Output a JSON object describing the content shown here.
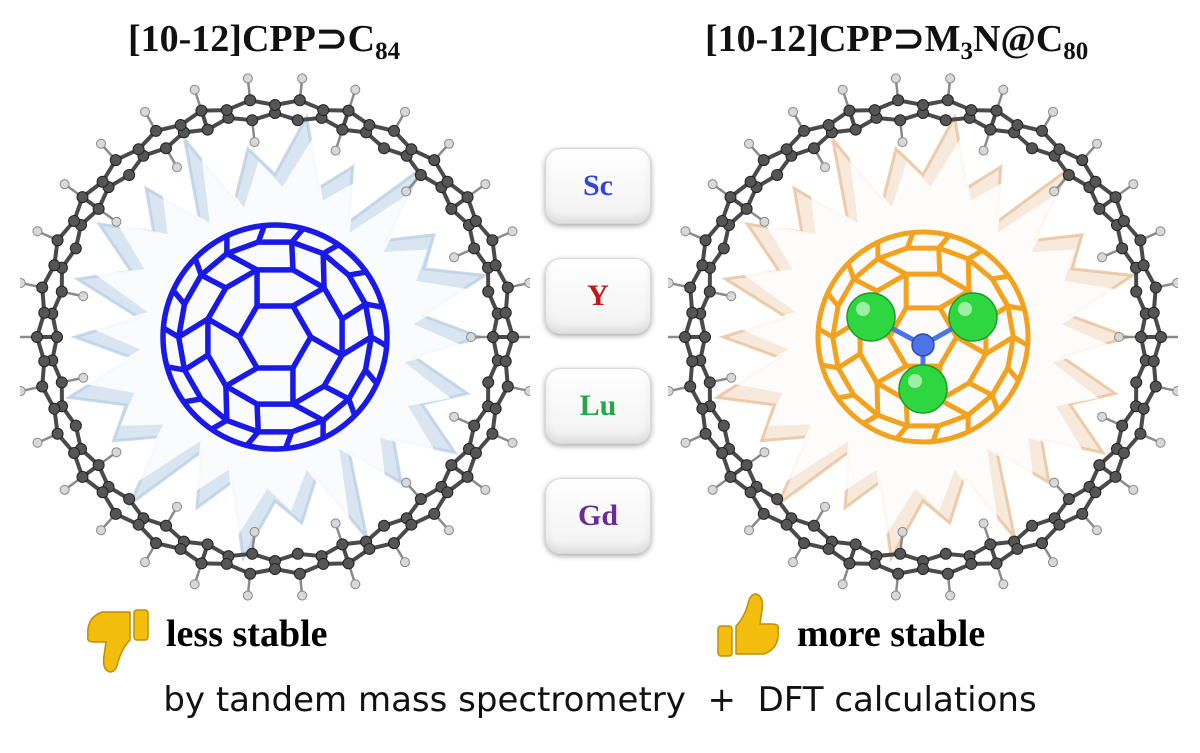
{
  "left": {
    "title_main": "[10-12]CPP⊃C",
    "title_sub": "84",
    "verdict": "less stable",
    "thumb_icon": "thumbs-down-icon",
    "cage_color": "#1a1ae6",
    "backdrop_color": "#b9cfe6"
  },
  "right": {
    "title_main": "[10-12]CPP⊃M",
    "title_sub1": "3",
    "title_mid": "N@C",
    "title_sub2": "80",
    "verdict": "more stable",
    "thumb_icon": "thumbs-up-icon",
    "cage_color": "#f2a21e",
    "backdrop_color": "#e9c09a",
    "metal_color": "#2ed640",
    "nitrogen_color": "#4a74e8"
  },
  "elements": [
    {
      "symbol": "Sc",
      "color": "#3344dd"
    },
    {
      "symbol": "Y",
      "color": "#c41818"
    },
    {
      "symbol": "Lu",
      "color": "#22a84a"
    },
    {
      "symbol": "Gd",
      "color": "#6a2a9a"
    }
  ],
  "method": "by tandem mass spectrometry  +  DFT calculations",
  "thumb_color": "#f2bd0c",
  "ring_color": "#4a4a4a"
}
